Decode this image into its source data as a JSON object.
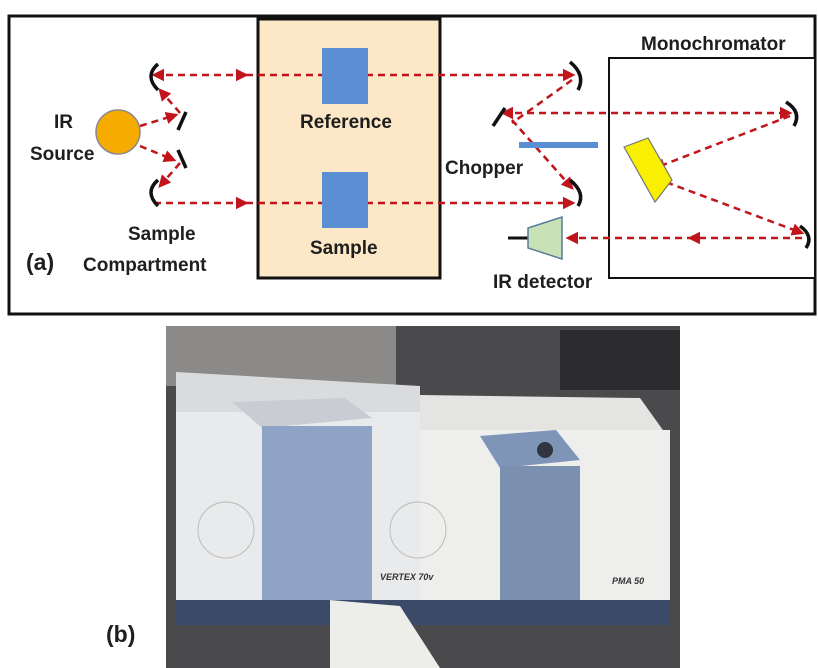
{
  "panel_a": {
    "tag": "(a)",
    "ir_source": [
      "IR",
      "Source"
    ],
    "reference": "Reference",
    "sample": "Sample",
    "sample_compartment": [
      "Sample",
      "Compartment"
    ],
    "chopper": "Chopper",
    "ir_detector": "IR detector",
    "monochromator": "Monochromator"
  },
  "panel_b": {
    "tag": "(b)",
    "photo_texts": [
      "VERTEX 70v",
      "PMA 50"
    ]
  }
}
